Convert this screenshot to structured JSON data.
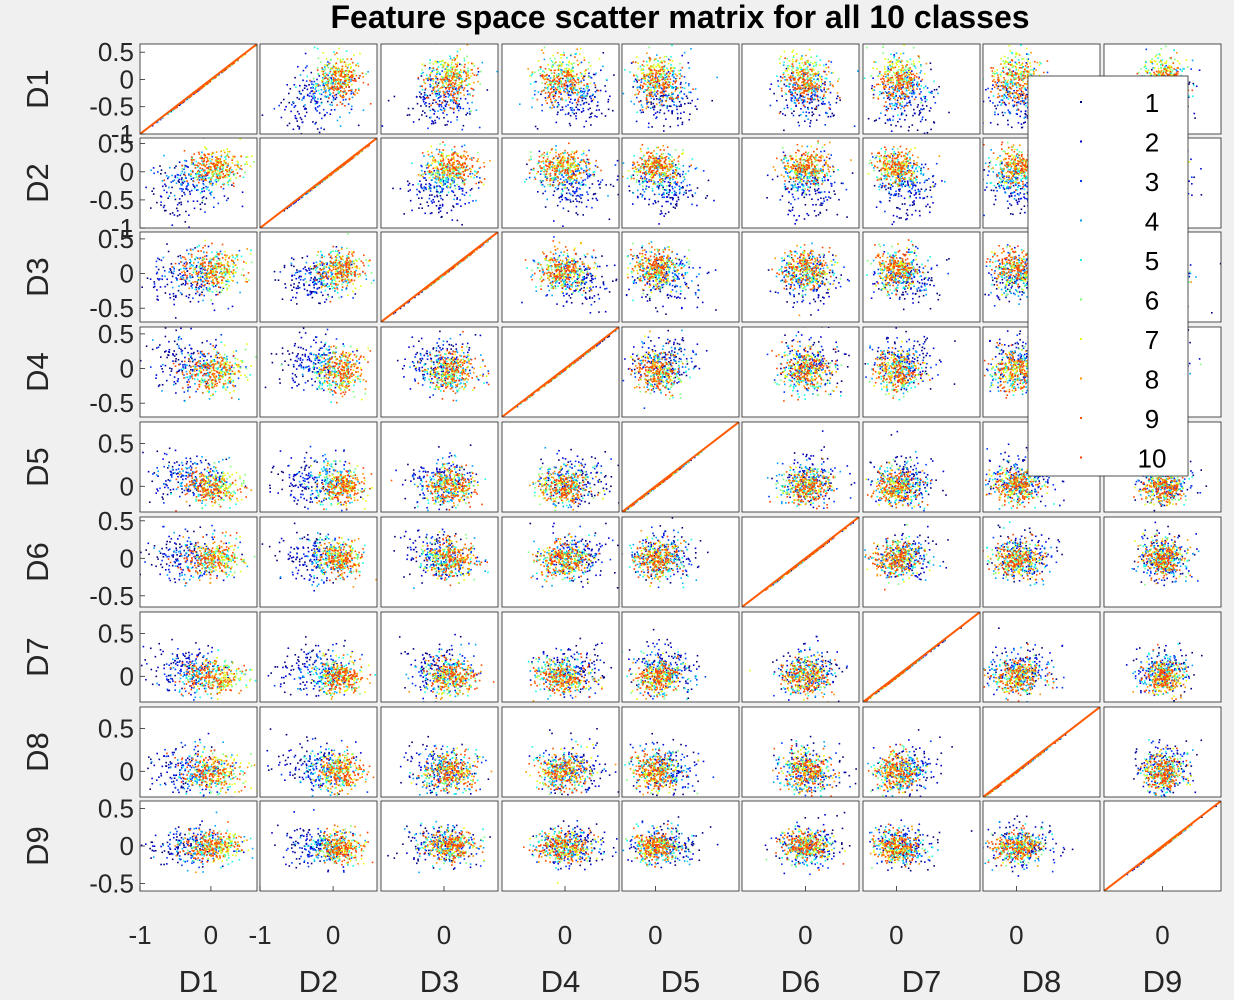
{
  "figure": {
    "title": "Feature space scatter matrix for all 10 classes",
    "background": "#f0f0f0",
    "axes_background": "#ffffff"
  },
  "chart_data": {
    "type": "scatter",
    "subtype": "scatter-matrix",
    "title": "Feature space scatter matrix for all 10 classes",
    "dimensions": [
      "D1",
      "D2",
      "D3",
      "D4",
      "D5",
      "D6",
      "D7",
      "D8",
      "D9"
    ],
    "row_labels": [
      "D1",
      "D2",
      "D3",
      "D4",
      "D5",
      "D6",
      "D7",
      "D8",
      "D9"
    ],
    "column_labels": [
      "D1",
      "D2",
      "D3",
      "D4",
      "D5",
      "D6",
      "D7",
      "D8",
      "D9"
    ],
    "diagonal": "identity line (points colored by class)",
    "classes": [
      "1",
      "2",
      "3",
      "4",
      "5",
      "6",
      "7",
      "8",
      "9",
      "10"
    ],
    "class_colors": [
      "#00007f",
      "#0000d4",
      "#0038ff",
      "#00a4ff",
      "#13ffe3",
      "#7dff7a",
      "#e8ff0f",
      "#ff9500",
      "#ff5500",
      "#ff4000"
    ],
    "dimension_ranges": [
      [
        -1.0,
        0.65
      ],
      [
        -1.0,
        0.6
      ],
      [
        -0.7,
        0.6
      ],
      [
        -0.7,
        0.6
      ],
      [
        -0.3,
        0.75
      ],
      [
        -0.65,
        0.55
      ],
      [
        -0.3,
        0.75
      ],
      [
        -0.3,
        0.75
      ],
      [
        -0.6,
        0.6
      ]
    ],
    "row_ticks": [
      {
        "values": [
          0.5,
          0,
          -0.5,
          -1
        ],
        "labels": [
          "0.5",
          "0",
          "-0.5",
          "-1"
        ]
      },
      {
        "values": [
          0.5,
          0,
          -0.5,
          -1
        ],
        "labels": [
          "0.5",
          "0",
          "-0.5",
          "-1"
        ]
      },
      {
        "values": [
          0.5,
          0,
          -0.5
        ],
        "labels": [
          "0.5",
          "0",
          "-0.5"
        ]
      },
      {
        "values": [
          0.5,
          0,
          -0.5
        ],
        "labels": [
          "0.5",
          "0",
          "-0.5"
        ]
      },
      {
        "values": [
          0.5,
          0
        ],
        "labels": [
          "0.5",
          "0"
        ]
      },
      {
        "values": [
          0.5,
          0,
          -0.5
        ],
        "labels": [
          "0.5",
          "0",
          "-0.5"
        ]
      },
      {
        "values": [
          0.5,
          0
        ],
        "labels": [
          "0.5",
          "0"
        ]
      },
      {
        "values": [
          0.5,
          0
        ],
        "labels": [
          "0.5",
          "0"
        ]
      },
      {
        "values": [
          0.5,
          0,
          -0.5
        ],
        "labels": [
          "0.5",
          "0",
          "-0.5"
        ]
      }
    ],
    "column_ticks": [
      {
        "values": [
          -1,
          0
        ],
        "labels": [
          "-1",
          "0"
        ]
      },
      {
        "values": [
          -1,
          0
        ],
        "labels": [
          "-1",
          "0"
        ]
      },
      {
        "values": [
          0
        ],
        "labels": [
          "0"
        ]
      },
      {
        "values": [
          0
        ],
        "labels": [
          "0"
        ]
      },
      {
        "values": [
          0
        ],
        "labels": [
          "0"
        ]
      },
      {
        "values": [
          0
        ],
        "labels": [
          "0"
        ]
      },
      {
        "values": [
          0
        ],
        "labels": [
          "0"
        ]
      },
      {
        "values": [
          0
        ],
        "labels": [
          "0"
        ]
      },
      {
        "values": [
          0
        ],
        "labels": [
          "0"
        ]
      }
    ],
    "class_means_by_dimension": {
      "D1": [
        -0.45,
        -0.35,
        -0.25,
        -0.15,
        0.0,
        0.1,
        0.15,
        0.0,
        -0.05,
        -0.05
      ],
      "D2": [
        -0.35,
        -0.3,
        -0.15,
        -0.05,
        0.0,
        0.05,
        0.1,
        0.1,
        0.12,
        0.12
      ],
      "D3": [
        -0.1,
        -0.08,
        0.0,
        0.02,
        0.05,
        0.05,
        0.05,
        0.08,
        0.08,
        0.08
      ],
      "D4": [
        0.15,
        0.1,
        0.05,
        0.0,
        -0.05,
        -0.05,
        0.0,
        -0.02,
        -0.03,
        -0.03
      ],
      "D5": [
        0.1,
        0.08,
        0.05,
        0.05,
        0.02,
        0.02,
        0.0,
        0.0,
        0.0,
        0.0
      ],
      "D6": [
        0.05,
        0.03,
        0.02,
        0.0,
        0.0,
        0.0,
        0.0,
        0.0,
        0.0,
        0.0
      ],
      "D7": [
        0.1,
        0.08,
        0.05,
        0.03,
        0.02,
        0.0,
        0.0,
        0.0,
        0.0,
        0.0
      ],
      "D8": [
        0.05,
        0.03,
        0.02,
        0.0,
        0.0,
        0.0,
        0.0,
        0.0,
        0.0,
        0.0
      ],
      "D9": [
        0.02,
        0.02,
        0.0,
        0.0,
        0.0,
        0.0,
        0.0,
        0.0,
        0.0,
        0.0
      ]
    },
    "class_spread_by_dimension": {
      "D1": [
        0.28,
        0.27,
        0.26,
        0.25,
        0.22,
        0.2,
        0.18,
        0.2,
        0.2,
        0.2
      ],
      "D2": [
        0.25,
        0.24,
        0.22,
        0.2,
        0.18,
        0.16,
        0.15,
        0.15,
        0.15,
        0.15
      ],
      "D3": [
        0.2,
        0.19,
        0.17,
        0.16,
        0.15,
        0.14,
        0.14,
        0.14,
        0.14,
        0.14
      ],
      "D4": [
        0.2,
        0.19,
        0.18,
        0.17,
        0.16,
        0.15,
        0.15,
        0.15,
        0.15,
        0.15
      ],
      "D5": [
        0.16,
        0.15,
        0.14,
        0.13,
        0.12,
        0.11,
        0.1,
        0.1,
        0.1,
        0.1
      ],
      "D6": [
        0.17,
        0.16,
        0.15,
        0.14,
        0.13,
        0.12,
        0.12,
        0.12,
        0.12,
        0.12
      ],
      "D7": [
        0.15,
        0.14,
        0.13,
        0.12,
        0.11,
        0.1,
        0.1,
        0.1,
        0.1,
        0.1
      ],
      "D8": [
        0.16,
        0.15,
        0.14,
        0.13,
        0.12,
        0.11,
        0.11,
        0.11,
        0.11,
        0.11
      ],
      "D9": [
        0.15,
        0.14,
        0.13,
        0.12,
        0.11,
        0.1,
        0.1,
        0.1,
        0.1,
        0.1
      ]
    },
    "points_per_class_per_panel": 55,
    "legend": {
      "position": "top-right",
      "entries": [
        "1",
        "2",
        "3",
        "4",
        "5",
        "6",
        "7",
        "8",
        "9",
        "10"
      ]
    },
    "grid": false
  }
}
